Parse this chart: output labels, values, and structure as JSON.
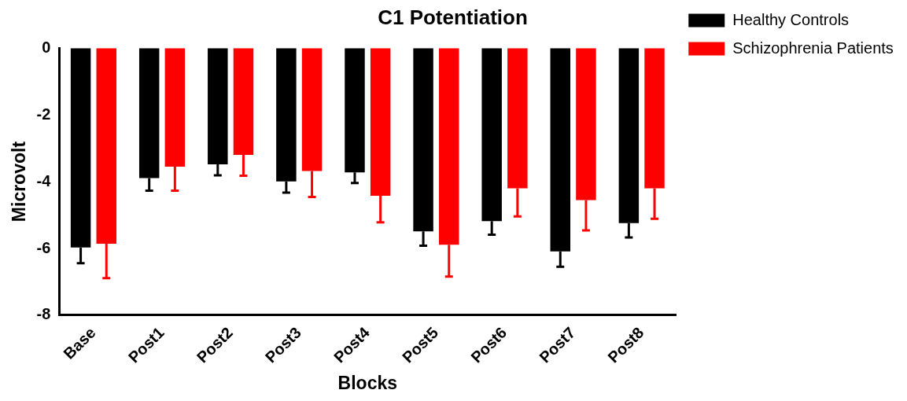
{
  "chart_data": {
    "type": "bar",
    "title": "C1 Potentiation",
    "xlabel": "Blocks",
    "ylabel": "Microvolt",
    "categories": [
      "Base",
      "Post1",
      "Post2",
      "Post3",
      "Post4",
      "Post5",
      "Post6",
      "Post7",
      "Post8"
    ],
    "series": [
      {
        "name": "Healthy Controls",
        "color": "#000000",
        "values": [
          -5.97,
          -3.89,
          -3.48,
          -3.99,
          -3.72,
          -5.49,
          -5.18,
          -6.09,
          -5.24
        ],
        "errors": [
          [
            -6.44,
            -5.97
          ],
          [
            -4.27,
            -3.89
          ],
          [
            -3.81,
            -3.48
          ],
          [
            -4.33,
            -3.99
          ],
          [
            -4.04,
            -3.72
          ],
          [
            -5.92,
            -5.49
          ],
          [
            -5.59,
            -5.18
          ],
          [
            -6.55,
            -6.09
          ],
          [
            -5.67,
            -5.24
          ]
        ]
      },
      {
        "name": "Schizophrenia Patients",
        "color": "#ff0000",
        "values": [
          -5.86,
          -3.55,
          -3.2,
          -3.68,
          -4.42,
          -5.89,
          -4.2,
          -4.55,
          -4.2
        ],
        "errors": [
          [
            -6.89,
            -5.86
          ],
          [
            -4.27,
            -3.55
          ],
          [
            -3.82,
            -3.2
          ],
          [
            -4.46,
            -3.68
          ],
          [
            -5.22,
            -4.42
          ],
          [
            -6.84,
            -5.89
          ],
          [
            -5.04,
            -4.2
          ],
          [
            -5.46,
            -4.55
          ],
          [
            -5.11,
            -4.2
          ]
        ]
      }
    ],
    "ylim": [
      -8,
      0
    ],
    "yticks": [
      -8,
      -6,
      -4,
      -2,
      0
    ],
    "grid": false,
    "legend": "top right"
  }
}
